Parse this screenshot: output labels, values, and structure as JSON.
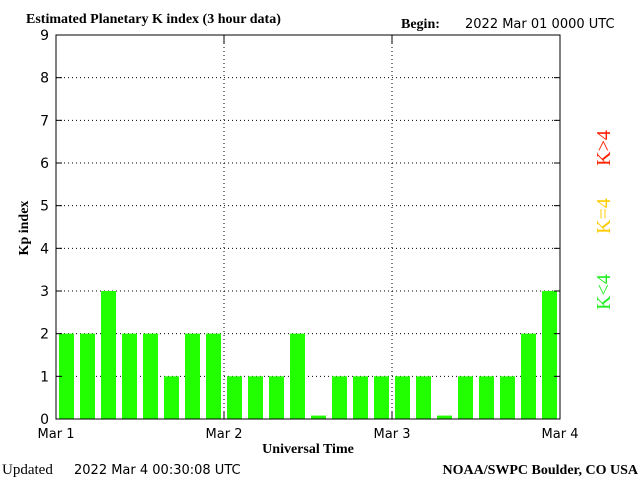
{
  "header": {
    "title": "Estimated Planetary K index (3 hour data)",
    "begin_label": "Begin:",
    "begin_value": "2022 Mar 01 0000 UTC"
  },
  "footer": {
    "updated_label": "Updated",
    "updated_value": "2022 Mar  4 00:30:08 UTC",
    "credit": "NOAA/SWPC Boulder, CO USA"
  },
  "legend": {
    "high": {
      "label": "K>4",
      "color": "#ff2000"
    },
    "equal": {
      "label": "K=4",
      "color": "#ffcc00"
    },
    "low": {
      "label": "K<4",
      "color": "#22ee22"
    }
  },
  "chart_data": {
    "type": "bar",
    "title": "Estimated Planetary K index (3 hour data)",
    "xlabel": "Universal Time",
    "ylabel": "Kp index",
    "ylim": [
      0,
      9
    ],
    "yticks": [
      "0",
      "1",
      "2",
      "3",
      "4",
      "5",
      "6",
      "7",
      "8",
      "9"
    ],
    "xticks": [
      "Mar 1",
      "Mar 2",
      "Mar 3",
      "Mar 4"
    ],
    "values": [
      2,
      2,
      3,
      2,
      2,
      1,
      2,
      2,
      1,
      1,
      1,
      2,
      0,
      1,
      1,
      1,
      1,
      1,
      0,
      1,
      1,
      1,
      2,
      3
    ],
    "bar_color": "#22ff00",
    "grid": true
  }
}
